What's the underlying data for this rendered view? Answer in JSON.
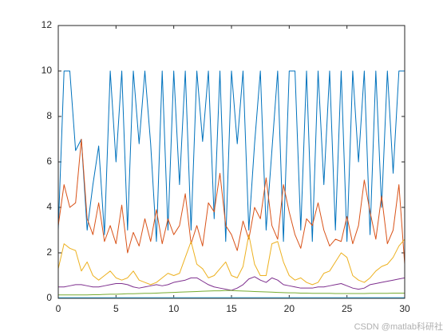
{
  "chart_data": {
    "type": "line",
    "x": [
      0,
      0.5,
      1,
      1.5,
      2,
      2.5,
      3,
      3.5,
      4,
      4.5,
      5,
      5.5,
      6,
      6.5,
      7,
      7.5,
      8,
      8.5,
      9,
      9.5,
      10,
      10.5,
      11,
      11.5,
      12,
      12.5,
      13,
      13.5,
      14,
      14.5,
      15,
      15.5,
      16,
      16.5,
      17,
      17.5,
      18,
      18.5,
      19,
      19.5,
      20,
      20.5,
      21,
      21.5,
      22,
      22.5,
      23,
      23.5,
      24,
      24.5,
      25,
      25.5,
      26,
      26.5,
      27,
      27.5,
      28,
      28.5,
      29,
      29.5,
      30
    ],
    "series": [
      {
        "color": "#0072BD",
        "values": [
          3,
          10,
          10,
          6.5,
          7,
          3,
          5,
          6.7,
          2.8,
          10,
          6,
          10,
          3,
          10,
          6.8,
          10,
          6.8,
          2.5,
          10,
          3,
          10,
          5,
          10,
          3,
          10,
          6.9,
          10,
          3.5,
          10,
          2.5,
          10,
          6.8,
          10,
          3,
          6.8,
          10,
          3,
          6.5,
          10,
          2.5,
          10,
          10,
          3,
          10,
          2.5,
          10,
          5,
          10,
          3,
          10,
          2.5,
          10,
          6,
          10,
          2.8,
          10,
          4,
          10,
          5.5,
          10,
          10
        ]
      },
      {
        "color": "#D95319",
        "values": [
          3.2,
          5,
          4,
          4.2,
          7,
          3.5,
          2.8,
          4.2,
          2.5,
          3.2,
          2.4,
          4.1,
          2,
          2.9,
          2.3,
          3.5,
          2.5,
          3.9,
          2.4,
          3.5,
          2.8,
          3.2,
          4.6,
          2.4,
          3.2,
          2.3,
          4.2,
          3.8,
          5.5,
          3.2,
          2.8,
          2.1,
          3.4,
          2.6,
          4,
          3.5,
          5.3,
          3.2,
          2.6,
          5,
          3.8,
          2.8,
          2.2,
          3.5,
          3.2,
          4.2,
          3,
          2.3,
          2.6,
          2.5,
          3.6,
          2.4,
          3.2,
          5.2,
          3.8,
          2.6,
          4.5,
          2.4,
          3,
          5,
          1.5
        ]
      },
      {
        "color": "#EDB120",
        "values": [
          1.3,
          2.4,
          2.2,
          2.1,
          1.2,
          1.6,
          1,
          0.8,
          1,
          1.2,
          0.9,
          0.8,
          0.9,
          1.2,
          0.8,
          0.7,
          0.6,
          0.7,
          0.9,
          1.1,
          1,
          1.1,
          1.8,
          2.5,
          1.5,
          1.3,
          0.9,
          1,
          1.3,
          1.6,
          1,
          0.9,
          1.4,
          2.8,
          1.5,
          1,
          1,
          2.4,
          2.5,
          1.6,
          1,
          0.8,
          0.9,
          0.7,
          0.6,
          0.7,
          1.1,
          1.2,
          1.6,
          2,
          1.8,
          1,
          0.8,
          0.7,
          0.9,
          1.2,
          1.4,
          1.5,
          1.8,
          2.3,
          2.6
        ]
      },
      {
        "color": "#7E2F8E",
        "values": [
          0.5,
          0.5,
          0.55,
          0.6,
          0.6,
          0.55,
          0.5,
          0.5,
          0.55,
          0.6,
          0.65,
          0.65,
          0.6,
          0.5,
          0.45,
          0.5,
          0.55,
          0.6,
          0.55,
          0.6,
          0.7,
          0.75,
          0.8,
          0.9,
          0.9,
          0.75,
          0.6,
          0.5,
          0.45,
          0.4,
          0.35,
          0.45,
          0.6,
          0.85,
          0.95,
          0.8,
          0.7,
          0.9,
          0.8,
          0.6,
          0.55,
          0.5,
          0.45,
          0.45,
          0.45,
          0.5,
          0.5,
          0.55,
          0.6,
          0.65,
          0.55,
          0.45,
          0.4,
          0.45,
          0.6,
          0.65,
          0.7,
          0.75,
          0.8,
          0.85,
          0.9
        ]
      },
      {
        "color": "#77AC30",
        "values": [
          0.15,
          0.15,
          0.15,
          0.15,
          0.15,
          0.15,
          0.16,
          0.16,
          0.17,
          0.18,
          0.18,
          0.19,
          0.2,
          0.2,
          0.21,
          0.22,
          0.22,
          0.23,
          0.24,
          0.25,
          0.26,
          0.27,
          0.28,
          0.29,
          0.3,
          0.31,
          0.32,
          0.33,
          0.33,
          0.34,
          0.34,
          0.33,
          0.32,
          0.31,
          0.3,
          0.29,
          0.28,
          0.27,
          0.26,
          0.25,
          0.24,
          0.24,
          0.23,
          0.23,
          0.22,
          0.22,
          0.22,
          0.22,
          0.21,
          0.21,
          0.21,
          0.21,
          0.21,
          0.21,
          0.22,
          0.22,
          0.22,
          0.22,
          0.23,
          0.23,
          0.23
        ]
      },
      {
        "color": "#4DBEEE",
        "values": [
          0.03,
          0.03,
          0.03,
          0.03,
          0.03,
          0.03,
          0.03,
          0.03,
          0.03,
          0.03,
          0.03,
          0.03,
          0.03,
          0.03,
          0.03,
          0.03,
          0.03,
          0.03,
          0.03,
          0.03,
          0.03,
          0.03,
          0.03,
          0.03,
          0.03,
          0.03,
          0.03,
          0.03,
          0.03,
          0.03,
          0.03,
          0.03,
          0.03,
          0.03,
          0.03,
          0.03,
          0.03,
          0.03,
          0.03,
          0.03,
          0.03,
          0.03,
          0.03,
          0.03,
          0.03,
          0.03,
          0.03,
          0.03,
          0.03,
          0.03,
          0.03,
          0.03,
          0.03,
          0.03,
          0.03,
          0.03,
          0.03,
          0.03,
          0.03,
          0.03,
          0.03
        ]
      }
    ],
    "xlim": [
      0,
      30
    ],
    "xticks": [
      0,
      5,
      10,
      15,
      20,
      25,
      30
    ],
    "ylim": [
      0,
      12
    ],
    "yticks": [
      0,
      2,
      4,
      6,
      8,
      10,
      12
    ],
    "grid": false
  },
  "watermark": "CSDN @matlab科研社"
}
